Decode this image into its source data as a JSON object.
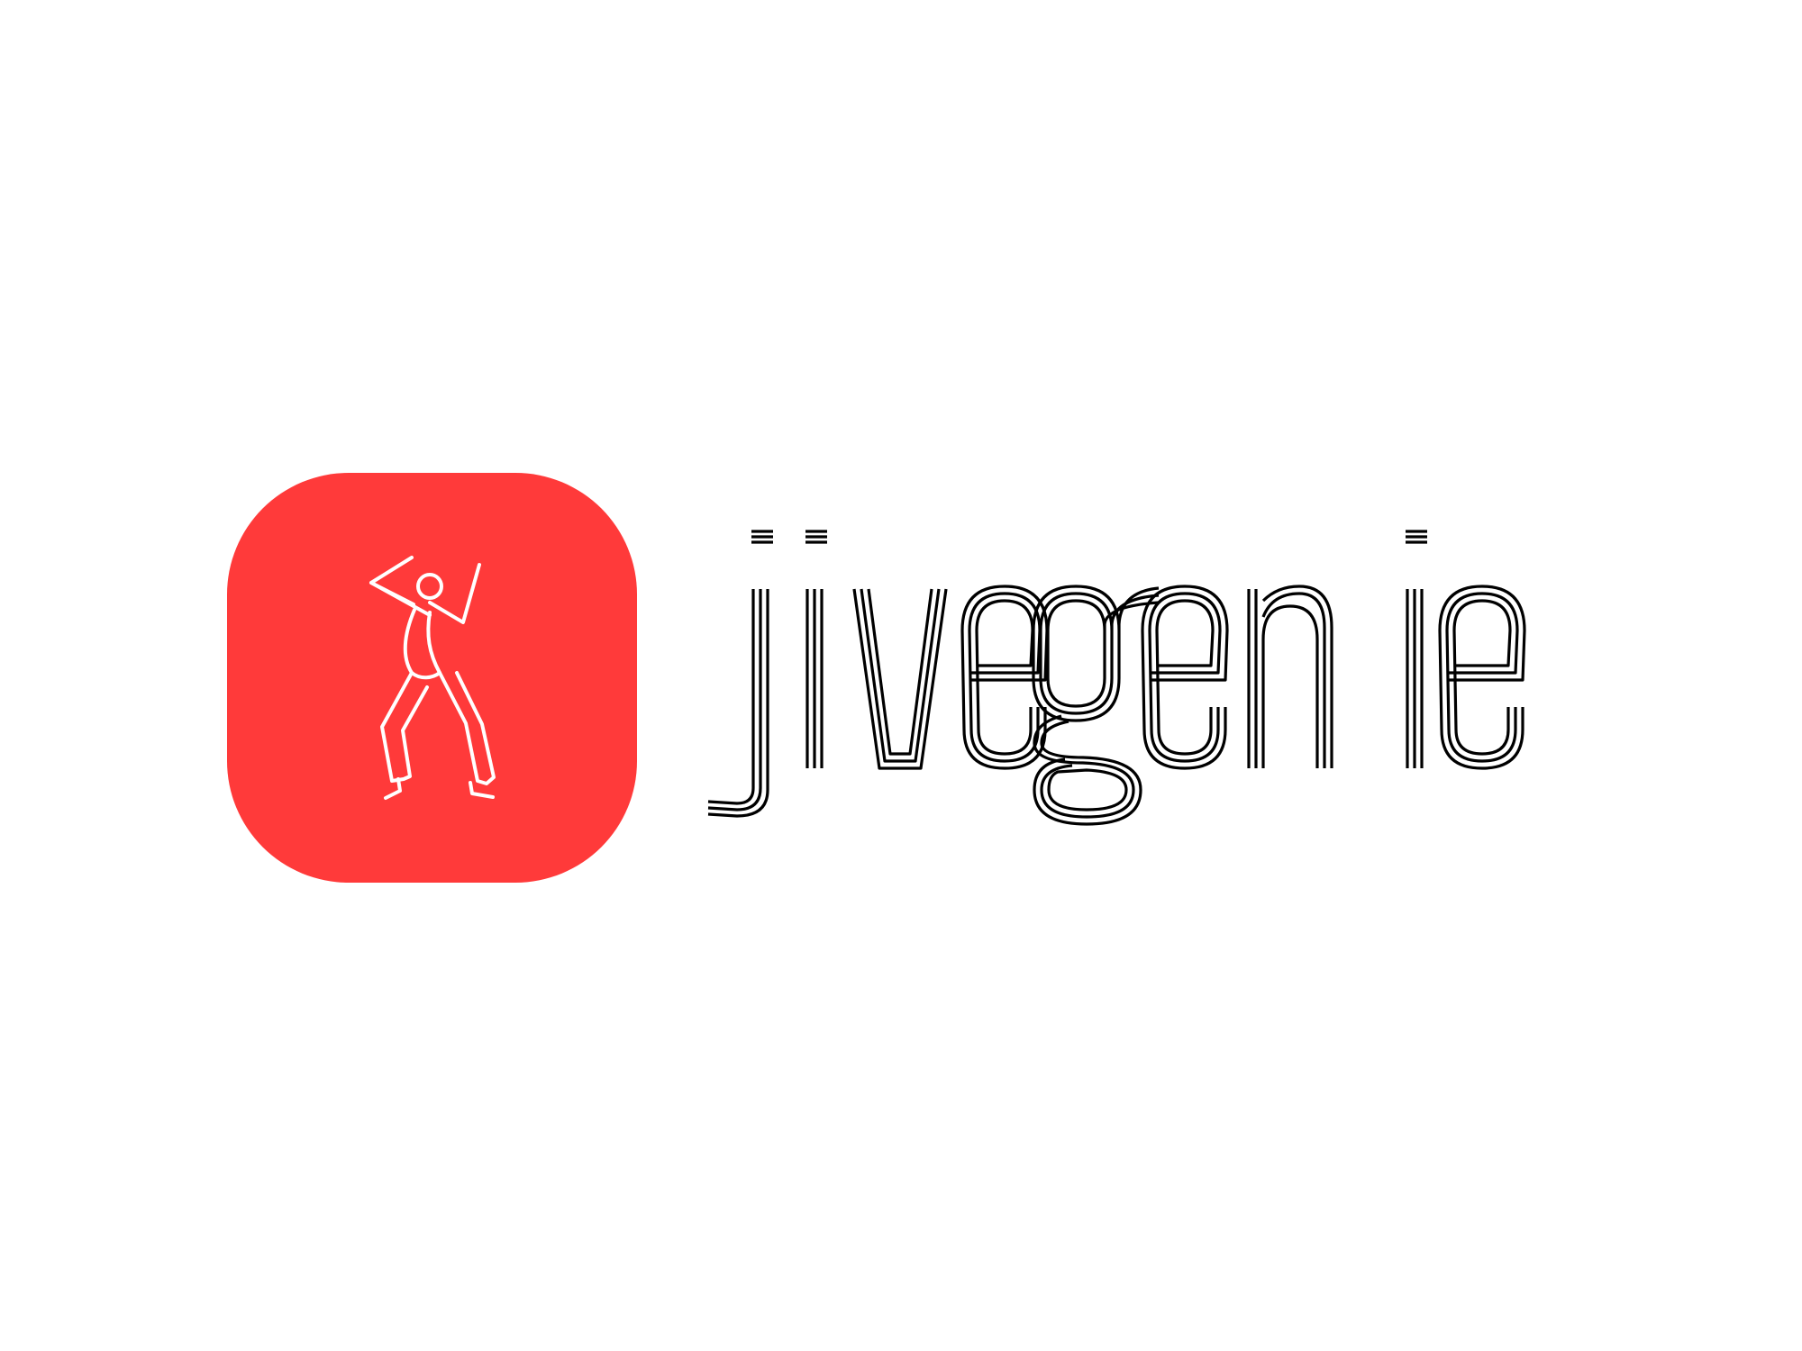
{
  "brand": {
    "name": "jivegenie",
    "icon_name": "dancing-figure-icon",
    "accent_color": "#FF3A3A",
    "icon_line_color": "#FFFFFF",
    "wordmark_color": "#000000",
    "background_color": "#FFFFFF"
  }
}
